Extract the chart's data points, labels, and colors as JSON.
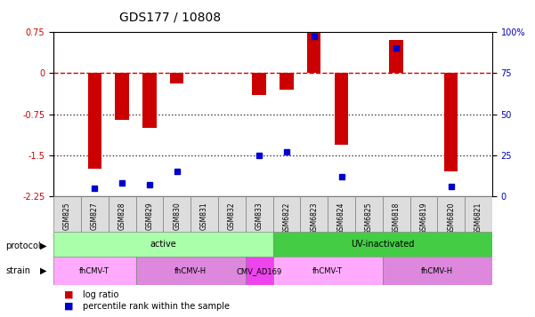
{
  "title": "GDS177 / 10808",
  "samples": [
    "GSM825",
    "GSM827",
    "GSM828",
    "GSM829",
    "GSM830",
    "GSM831",
    "GSM832",
    "GSM833",
    "GSM6822",
    "GSM6823",
    "GSM6824",
    "GSM6825",
    "GSM6818",
    "GSM6819",
    "GSM6820",
    "GSM6821"
  ],
  "log_ratio": [
    0.0,
    -1.75,
    -0.85,
    -1.0,
    -0.2,
    0.0,
    0.0,
    -0.4,
    -0.3,
    0.75,
    -1.3,
    0.0,
    0.6,
    0.0,
    -1.8,
    0.0
  ],
  "percentile": [
    null,
    5,
    8,
    7,
    15,
    null,
    null,
    25,
    27,
    97,
    12,
    null,
    90,
    null,
    6,
    null
  ],
  "ylim": [
    -2.25,
    0.75
  ],
  "yticks_left": [
    0.75,
    0,
    -0.75,
    -1.5,
    -2.25
  ],
  "yticks_right_vals": [
    0.75,
    0,
    -0.75,
    -1.5,
    -2.25
  ],
  "yticks_right_labels": [
    "100%",
    "75",
    "50",
    "25",
    "0"
  ],
  "hline_y0": 0,
  "hline_y1": -0.75,
  "hline_y2": -1.5,
  "bar_color": "#cc0000",
  "dot_color": "#0000cc",
  "hline0_color": "#cc0000",
  "hline0_style": "--",
  "hline_dotted_color": "#333333",
  "protocol_groups": [
    {
      "label": "active",
      "start": 0,
      "end": 8,
      "color": "#aaffaa"
    },
    {
      "label": "UV-inactivated",
      "start": 8,
      "end": 16,
      "color": "#44cc44"
    }
  ],
  "strain_groups": [
    {
      "label": "fhCMV-T",
      "start": 0,
      "end": 3,
      "color": "#ffaaff"
    },
    {
      "label": "fhCMV-H",
      "start": 3,
      "end": 7,
      "color": "#dd88dd"
    },
    {
      "label": "CMV_AD169",
      "start": 7,
      "end": 8,
      "color": "#ee44ee"
    },
    {
      "label": "fhCMV-T",
      "start": 8,
      "end": 12,
      "color": "#ffaaff"
    },
    {
      "label": "fhCMV-H",
      "start": 12,
      "end": 16,
      "color": "#dd88dd"
    }
  ],
  "legend_items": [
    {
      "label": "log ratio",
      "color": "#cc0000"
    },
    {
      "label": "percentile rank within the sample",
      "color": "#0000cc"
    }
  ]
}
